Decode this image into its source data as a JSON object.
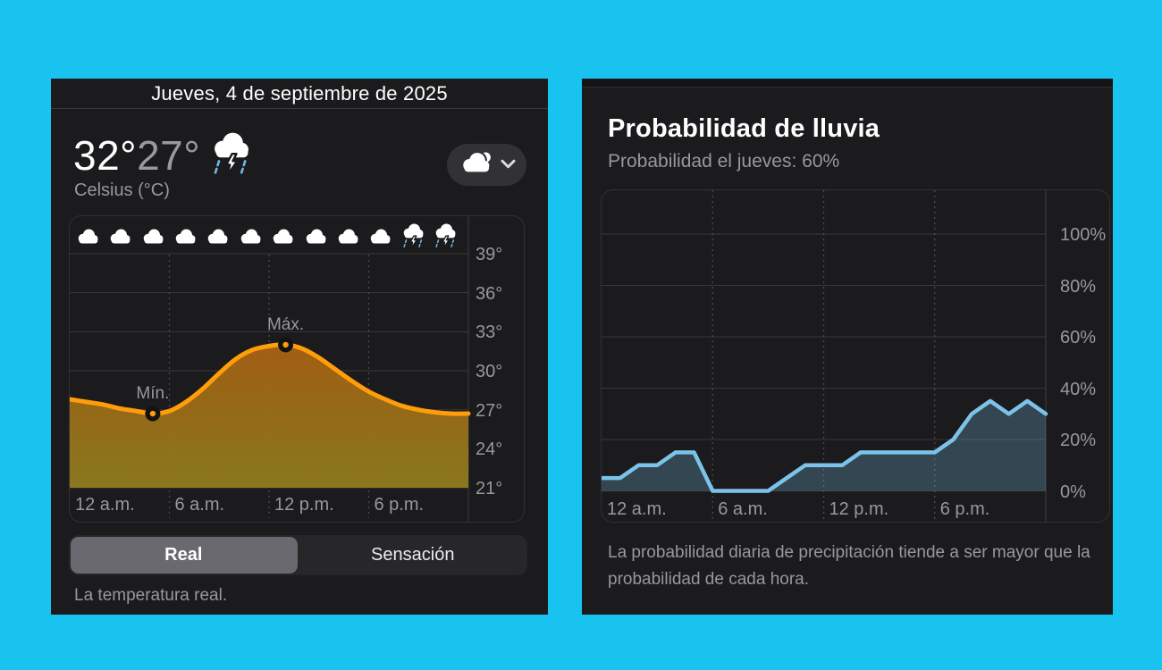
{
  "colors": {
    "background": "#18c3f0",
    "panel": "#1b1b1d",
    "temp_line": "#ff9d0a",
    "rain_line": "#7cc3ea",
    "text_secondary": "#98989d"
  },
  "left_panel": {
    "date_title": "Jueves, 4 de septiembre de 2025",
    "current": {
      "temp_high": "32°",
      "temp_low": "27°",
      "condition_icon": "storm-cloud-icon",
      "unit_label": "Celsius (°C)"
    },
    "view_selector": {
      "icon": "cloudy-icon",
      "chevron_icon": "chevron-down-icon"
    },
    "tabs": [
      {
        "label": "Real",
        "selected": true
      },
      {
        "label": "Sensación",
        "selected": false
      }
    ],
    "footnote": "La temperatura real.",
    "chart_data": {
      "type": "area",
      "title": "Temperatura por hora (°C)",
      "x_hours": [
        0,
        1,
        2,
        3,
        4,
        5,
        6,
        7,
        8,
        9,
        10,
        11,
        12,
        13,
        14,
        15,
        16,
        17,
        18,
        19,
        20,
        21,
        22,
        23,
        24
      ],
      "values": [
        27.8,
        27.6,
        27.4,
        27.1,
        26.9,
        26.7,
        26.9,
        27.6,
        28.6,
        29.8,
        30.9,
        31.6,
        31.9,
        32,
        31.7,
        31,
        30.1,
        29.2,
        28.4,
        27.8,
        27.3,
        27,
        26.8,
        26.7,
        26.7
      ],
      "ylim": [
        21,
        39
      ],
      "y_ticks": [
        "39°",
        "36°",
        "33°",
        "30°",
        "27°",
        "24°",
        "21°"
      ],
      "x_ticks": [
        {
          "hour": 0,
          "label": "12 a.m."
        },
        {
          "hour": 6,
          "label": "6 a.m."
        },
        {
          "hour": 12,
          "label": "12 p.m."
        },
        {
          "hour": 18,
          "label": "6 p.m."
        }
      ],
      "grid": true,
      "smooth": true,
      "line_color": "#ff9d0a",
      "annotations": [
        {
          "label": "Mín.",
          "hour": 5,
          "value": 26.7
        },
        {
          "label": "Máx.",
          "hour": 13,
          "value": 32
        }
      ],
      "condition_icons": [
        "cloud",
        "cloud",
        "cloud",
        "cloud",
        "cloud",
        "cloud",
        "cloud",
        "cloud",
        "cloud",
        "cloud",
        "storm",
        "storm"
      ]
    }
  },
  "right_panel": {
    "title": "Probabilidad de lluvia",
    "subtitle": "Probabilidad el jueves: 60%",
    "footnote": "La probabilidad diaria de precipitación tiende a ser mayor que la probabilidad de cada hora.",
    "chart_data": {
      "type": "area",
      "title": "Probabilidad de lluvia por hora (%)",
      "x_hours": [
        0,
        1,
        2,
        3,
        4,
        5,
        6,
        7,
        8,
        9,
        10,
        11,
        12,
        13,
        14,
        15,
        16,
        17,
        18,
        19,
        20,
        21,
        22,
        23,
        24
      ],
      "values": [
        5,
        5,
        10,
        10,
        15,
        15,
        0,
        0,
        0,
        0,
        5,
        10,
        10,
        10,
        15,
        15,
        15,
        15,
        15,
        20,
        30,
        35,
        30,
        35,
        30
      ],
      "ylim": [
        0,
        100
      ],
      "y_ticks": [
        "100%",
        "80%",
        "60%",
        "40%",
        "20%",
        "0%"
      ],
      "x_ticks": [
        {
          "hour": 0,
          "label": "12 a.m."
        },
        {
          "hour": 6,
          "label": "6 a.m."
        },
        {
          "hour": 12,
          "label": "12 p.m."
        },
        {
          "hour": 18,
          "label": "6 p.m."
        }
      ],
      "grid": true,
      "smooth": false,
      "line_color": "#7cc3ea"
    }
  }
}
